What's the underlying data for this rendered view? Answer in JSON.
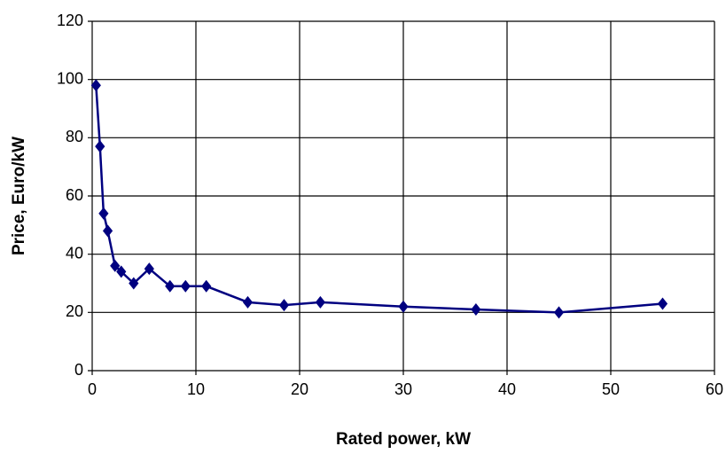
{
  "chart_data": {
    "type": "line",
    "x_label": "Rated power, kW",
    "y_label": "Price, Euro/kW",
    "x": [
      0.37,
      0.75,
      1.1,
      1.5,
      2.2,
      2.8,
      4,
      5.5,
      7.5,
      9,
      11,
      15,
      18.5,
      22,
      30,
      37,
      45,
      55
    ],
    "series": [
      {
        "color": "#000080",
        "values": [
          98,
          77,
          54,
          48,
          36,
          34,
          30,
          35,
          29,
          29,
          29,
          23.5,
          22.5,
          23.5,
          22,
          21,
          20,
          23
        ]
      }
    ],
    "xlim": [
      0,
      60
    ],
    "xticks": [
      0,
      10,
      20,
      30,
      40,
      50,
      60
    ],
    "ylim": [
      0,
      120
    ],
    "yticks": [
      0,
      20,
      40,
      60,
      80,
      100,
      120
    ],
    "grid": true,
    "markers": "diamond"
  }
}
